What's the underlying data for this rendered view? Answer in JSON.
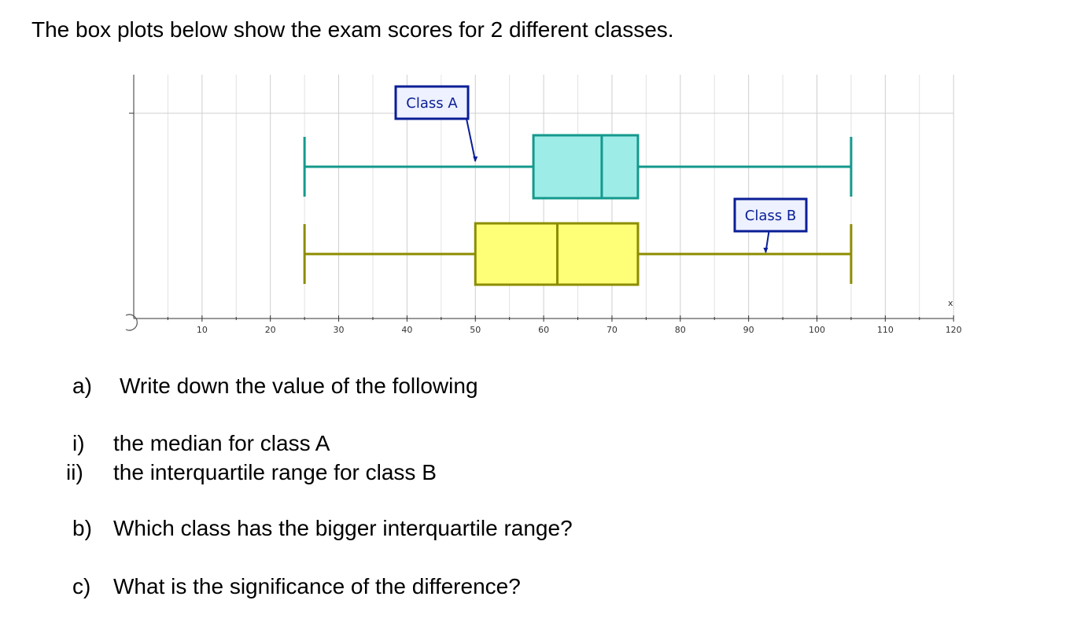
{
  "intro": "The box plots below show the exam scores for 2 different classes.",
  "chart_data": {
    "type": "boxplot",
    "orientation": "horizontal",
    "x_axis_label": "x",
    "xlim": [
      0,
      120
    ],
    "x_tick_values": [
      10,
      20,
      30,
      40,
      50,
      60,
      70,
      80,
      90,
      100,
      110,
      120
    ],
    "x_tick_labels": [
      "10",
      "20",
      "30",
      "40",
      "50",
      "60",
      "70",
      "80",
      "90",
      "100",
      "110",
      "120"
    ],
    "x_minor_step": 5,
    "grid": true,
    "boxes": [
      {
        "name": "Class A",
        "min": 25,
        "q1": 58.5,
        "median": 68.5,
        "q3": 73.8,
        "max": 105,
        "stroke_color": "#14998c",
        "fill_color": "#9eece8",
        "callout_points_to": 50
      },
      {
        "name": "Class B",
        "min": 25,
        "q1": 50,
        "median": 62,
        "q3": 73.8,
        "max": 105,
        "stroke_color": "#8c8c00",
        "fill_color": "#ffff77",
        "callout_points_to": 92.5
      }
    ],
    "callout_border_color": "#0a1e96",
    "callout_fill_color": "#eef1ff"
  },
  "questions": [
    {
      "label": "a)",
      "text": "Write down the value of the following"
    },
    {
      "label": "i)",
      "text": "the median for class A"
    },
    {
      "label": "ii)",
      "text": "the interquartile range for class B"
    },
    {
      "label": "b)",
      "text": "Which class has the bigger interquartile range?"
    },
    {
      "label": "c)",
      "text": "What is the significance of the difference?"
    }
  ]
}
